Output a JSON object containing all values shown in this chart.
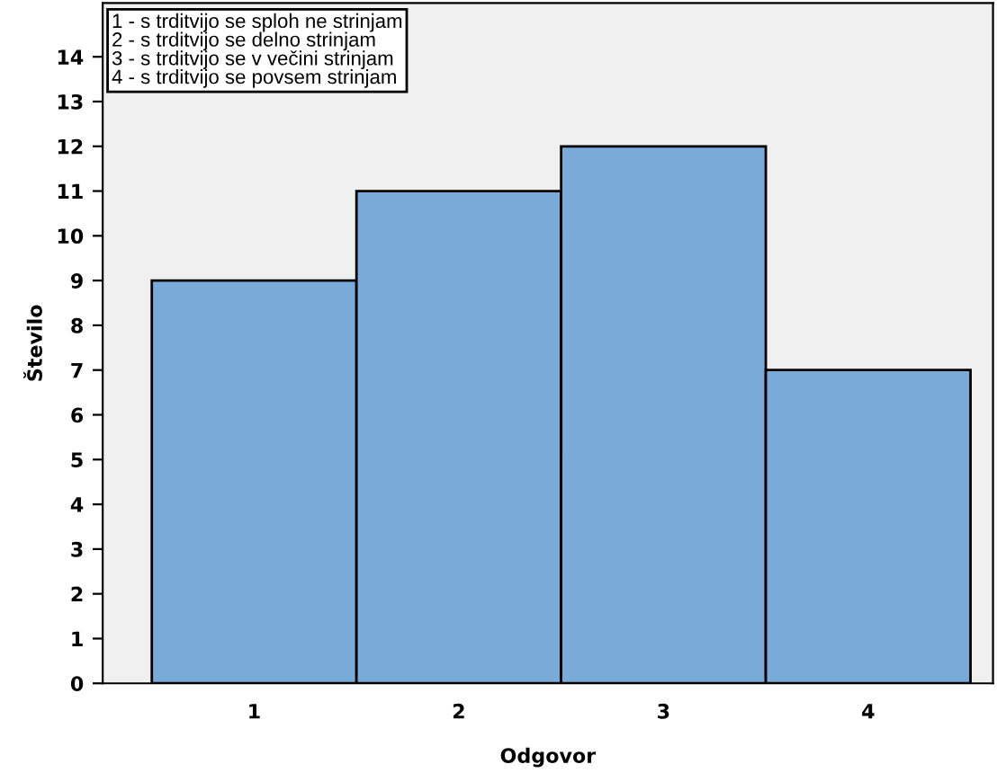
{
  "chart_data": {
    "type": "bar",
    "xlabel": "Odgovor",
    "ylabel": "Število",
    "categories": [
      "1",
      "2",
      "3",
      "4"
    ],
    "values": [
      9,
      11,
      12,
      7
    ],
    "color": "#7aaad8",
    "ylim": [
      0,
      15.2
    ],
    "yticks": [
      0,
      1,
      2,
      3,
      4,
      5,
      6,
      7,
      8,
      9,
      10,
      11,
      12,
      13,
      14
    ],
    "grid": false,
    "annotations": [
      "1 - s trditvijo se sploh ne strinjam",
      "2 - s trditvijo se delno strinjam",
      "3 - s trditvijo se v večini strinjam",
      "4 - s trditvijo se povsem strinjam"
    ]
  }
}
